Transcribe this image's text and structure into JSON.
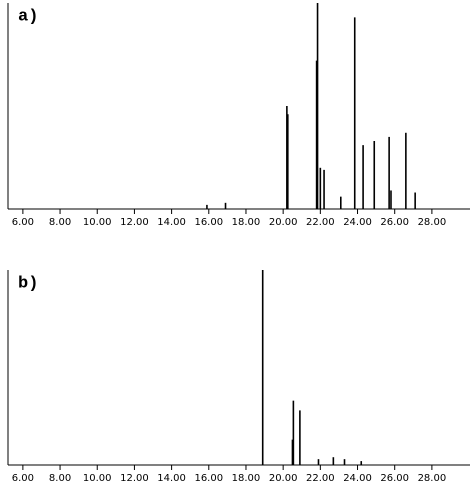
{
  "chart_data": [
    {
      "type": "bar",
      "label": "a)",
      "color": "#000000",
      "x": [
        15.9,
        16.9,
        20.2,
        20.25,
        21.8,
        21.85,
        22.0,
        22.2,
        23.1,
        23.85,
        24.3,
        24.9,
        25.7,
        25.8,
        26.6,
        27.1
      ],
      "values": [
        2,
        3,
        50,
        46,
        72,
        100,
        20,
        19,
        6,
        93,
        31,
        33,
        35,
        9,
        37,
        8
      ],
      "xlim": [
        5.2,
        30.05
      ],
      "ylim": [
        0,
        100
      ],
      "xticks": [
        {
          "value": 6,
          "label": "6.00"
        },
        {
          "value": 8,
          "label": "8.00"
        },
        {
          "value": 10,
          "label": "10.00"
        },
        {
          "value": 12,
          "label": "12.00"
        },
        {
          "value": 14,
          "label": "14.00"
        },
        {
          "value": 16,
          "label": "16.00"
        },
        {
          "value": 18,
          "label": "18.00"
        },
        {
          "value": 20,
          "label": "20.00"
        },
        {
          "value": 22,
          "label": "22.00"
        },
        {
          "value": 24,
          "label": "24.00"
        },
        {
          "value": 26,
          "label": "26.00"
        },
        {
          "value": 28,
          "label": "28.00"
        }
      ]
    },
    {
      "type": "bar",
      "label": "b)",
      "color": "#000000",
      "x": [
        18.9,
        20.5,
        20.55,
        20.9,
        21.9,
        22.7,
        23.3,
        24.2
      ],
      "values": [
        100,
        13,
        33,
        28,
        3,
        4,
        3,
        2
      ],
      "xlim": [
        5.2,
        30.05
      ],
      "ylim": [
        0,
        100
      ],
      "xticks": [
        {
          "value": 6,
          "label": "6.00"
        },
        {
          "value": 8,
          "label": "8.00"
        },
        {
          "value": 10,
          "label": "10.00"
        },
        {
          "value": 12,
          "label": "12.00"
        },
        {
          "value": 14,
          "label": "14.00"
        },
        {
          "value": 16,
          "label": "16.00"
        },
        {
          "value": 18,
          "label": "18.00"
        },
        {
          "value": 20,
          "label": "20.00"
        },
        {
          "value": 22,
          "label": "22.00"
        },
        {
          "value": 24,
          "label": "24.00"
        },
        {
          "value": 26,
          "label": "26.00"
        },
        {
          "value": 28,
          "label": "28.00"
        }
      ]
    }
  ]
}
